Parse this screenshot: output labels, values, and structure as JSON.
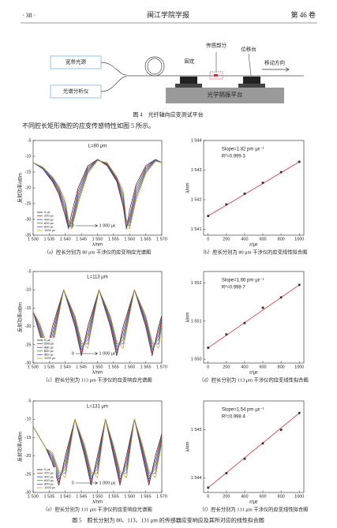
{
  "header": {
    "page": "· 38 ·",
    "journal": "闽江学院学报",
    "volume": "第 46 卷"
  },
  "figure4": {
    "source": "宽带光源",
    "analyzer": "光谱分析仪",
    "sensing": "传感部分",
    "fixed": "固定",
    "stage": "位移台",
    "direction": "移动方向",
    "platform": "光学隔振平台",
    "caption": "图 4　光纤轴向应变测试平台"
  },
  "paragraph": "不同腔长矩形微腔的应变传感特性如图 5 所示。",
  "chart_data": [
    {
      "type": "line",
      "title": "L=80 μm",
      "x_label": "λ/nm",
      "y_label": "反射功率/dBm",
      "x": [
        1530,
        1533,
        1536,
        1538,
        1540,
        1541,
        1542,
        1544,
        1547,
        1550,
        1553,
        1556,
        1558,
        1559,
        1560,
        1562,
        1565,
        1568,
        1570
      ],
      "series": [
        {
          "name": "0 με",
          "color": "#222222",
          "values": [
            -12,
            -14,
            -18,
            -22,
            -29,
            -33,
            -28,
            -20,
            -13,
            -11,
            -13,
            -18,
            -26,
            -33,
            -27,
            -19,
            -13,
            -11,
            -12
          ]
        },
        {
          "name": "200 με",
          "color": "#d62728",
          "values": [
            -12,
            -14,
            -17.7,
            -21.5,
            -28,
            -33,
            -30,
            -21,
            -13.5,
            -11,
            -12.8,
            -17.7,
            -25,
            -33,
            -29,
            -20,
            -13.5,
            -11,
            -12
          ]
        },
        {
          "name": "400 με",
          "color": "#1f4fd6",
          "values": [
            -12,
            -14,
            -17.4,
            -21,
            -27,
            -32.5,
            -31,
            -22,
            -14,
            -11,
            -12.6,
            -17.4,
            -24,
            -32.5,
            -30,
            -21,
            -14,
            -11,
            -12
          ]
        },
        {
          "name": "600 με",
          "color": "#2a8a2a",
          "values": [
            -12,
            -13.8,
            -17.1,
            -20.5,
            -26,
            -32,
            -32,
            -23,
            -14.5,
            -11,
            -12.4,
            -17.1,
            -23,
            -32,
            -31,
            -22,
            -14.5,
            -11.2,
            -12
          ]
        },
        {
          "name": "800 με",
          "color": "#8a3ab9",
          "values": [
            -12,
            -13.6,
            -16.8,
            -20,
            -25,
            -31,
            -33,
            -24,
            -15,
            -11.2,
            -12.2,
            -16.8,
            -22,
            -31,
            -32,
            -23,
            -15,
            -11.4,
            -12
          ]
        },
        {
          "name": "1000 με",
          "color": "#b5a21a",
          "values": [
            -12,
            -13.4,
            -16.5,
            -19.5,
            -24,
            -30,
            -33,
            -25,
            -15.5,
            -11.4,
            -12,
            -16.5,
            -21,
            -30,
            -33,
            -24,
            -15.5,
            -11.6,
            -12
          ]
        }
      ],
      "xlim": [
        1530,
        1570
      ],
      "xticks": [
        {
          "value": 1530,
          "label": "1 530"
        },
        {
          "value": 1535,
          "label": "1 535"
        },
        {
          "value": 1540,
          "label": "1 540"
        },
        {
          "value": 1545,
          "label": "1 545"
        },
        {
          "value": 1550,
          "label": "1 550"
        },
        {
          "value": 1555,
          "label": "1 555"
        },
        {
          "value": 1560,
          "label": "1 560"
        },
        {
          "value": 1565,
          "label": "1 565"
        },
        {
          "value": 1570,
          "label": "1 570"
        }
      ],
      "ylim": [
        -35,
        -5
      ],
      "yticks": [
        -35,
        -30,
        -25,
        -20,
        -15,
        -10,
        -5
      ],
      "annotations": [
        "0",
        "1 000 με"
      ],
      "legend": "lower left",
      "caption": "（a）腔长分别为 80 μm 干涉仪的应变响应光谱图"
    },
    {
      "type": "scatter",
      "x_label": "ε/με",
      "y_label": "λ/nm",
      "x": [
        0,
        200,
        400,
        600,
        800,
        1000
      ],
      "values": [
        1541.45,
        1541.84,
        1542.2,
        1542.57,
        1542.93,
        1543.28
      ],
      "color": "#333333",
      "fit_color": "#e03030",
      "xlim": [
        -50,
        1050
      ],
      "xticks": [
        0,
        200,
        400,
        600,
        800,
        1000
      ],
      "ylim": [
        1540.8,
        1544
      ],
      "yticks": [
        {
          "value": 1541,
          "label": "1 541"
        },
        {
          "value": 1542,
          "label": "1 542"
        },
        {
          "value": 1543,
          "label": "1 543"
        },
        {
          "value": 1544,
          "label": "1 544"
        }
      ],
      "annotations": [
        "Slope=1.82 pm·με⁻¹",
        "R²=0.999 3"
      ],
      "caption": "（b）腔长分别为 80 μm 干涉仪的应变线性拟合图"
    },
    {
      "type": "line",
      "title": "L=113 μm",
      "x_label": "λ/nm",
      "y_label": "反射功率/dBm",
      "x": [
        1530,
        1532,
        1534,
        1536,
        1539.5,
        1543,
        1545,
        1547,
        1550.5,
        1554,
        1556,
        1558,
        1561.5,
        1565,
        1567,
        1569,
        1570
      ],
      "series": [
        {
          "name": "0 με",
          "color": "#222222",
          "values": [
            -16,
            -22,
            -28,
            -20,
            -10,
            -20,
            -28,
            -20,
            -10,
            -20,
            -28,
            -20,
            -10,
            -20,
            -28,
            -20,
            -17
          ]
        },
        {
          "name": "200 με",
          "color": "#d62728",
          "values": [
            -16,
            -21.4,
            -27.2,
            -21.2,
            -10,
            -19.4,
            -27.2,
            -21.2,
            -10,
            -19.4,
            -27.2,
            -21.2,
            -10,
            -19.4,
            -27.2,
            -21.2,
            -17.5
          ]
        },
        {
          "name": "400 με",
          "color": "#1f4fd6",
          "values": [
            -16,
            -20.8,
            -26.4,
            -22.4,
            -10,
            -18.8,
            -26.4,
            -22.4,
            -10,
            -18.8,
            -26.4,
            -22.4,
            -10,
            -18.8,
            -26.4,
            -22.4,
            -18
          ]
        },
        {
          "name": "600 με",
          "color": "#2a8a2a",
          "values": [
            -16,
            -20.2,
            -25.6,
            -23.6,
            -10,
            -18.2,
            -25.6,
            -23.6,
            -10,
            -18.2,
            -25.6,
            -23.6,
            -10,
            -18.2,
            -25.6,
            -23.6,
            -18.5
          ]
        },
        {
          "name": "800 με",
          "color": "#8a3ab9",
          "values": [
            -16,
            -19.6,
            -24.8,
            -24.8,
            -10,
            -17.6,
            -24.8,
            -24.8,
            -10,
            -17.6,
            -24.8,
            -24.8,
            -10,
            -17.6,
            -24.8,
            -24.8,
            -19
          ]
        },
        {
          "name": "1000 με",
          "color": "#b5a21a",
          "values": [
            -16,
            -19,
            -24,
            -26,
            -10,
            -17,
            -24,
            -26,
            -10,
            -17,
            -24,
            -26,
            -10,
            -17,
            -24,
            -26,
            -19.5
          ]
        }
      ],
      "xlim": [
        1530,
        1570
      ],
      "xticks": [
        {
          "value": 1530,
          "label": "1 530"
        },
        {
          "value": 1535,
          "label": "1 535"
        },
        {
          "value": 1540,
          "label": "1 540"
        },
        {
          "value": 1545,
          "label": "1 545"
        },
        {
          "value": 1550,
          "label": "1 550"
        },
        {
          "value": 1555,
          "label": "1 555"
        },
        {
          "value": 1560,
          "label": "1 560"
        },
        {
          "value": 1565,
          "label": "1 565"
        },
        {
          "value": 1570,
          "label": "1 570"
        }
      ],
      "ylim": [
        -30,
        -5
      ],
      "yticks": [
        -30,
        -25,
        -20,
        -15,
        -10,
        -5
      ],
      "annotations": [
        "0",
        "1 000 με"
      ],
      "legend": "lower left",
      "caption": "（c）腔长分别为 113 μm 干涉仪的应变响应光谱图"
    },
    {
      "type": "scatter",
      "x_label": "ε/με",
      "y_label": "λ/nm",
      "x": [
        0,
        200,
        400,
        600,
        800,
        1000
      ],
      "values": [
        1550.3,
        1550.65,
        1550.95,
        1551.35,
        1551.62,
        1551.95
      ],
      "color": "#333333",
      "fit_color": "#e03030",
      "xlim": [
        -50,
        1050
      ],
      "xticks": [
        0,
        200,
        400,
        600,
        800,
        1000
      ],
      "ylim": [
        1549.9,
        1552.3
      ],
      "yticks": [
        {
          "value": 1550,
          "label": "1 550"
        },
        {
          "value": 1551,
          "label": "1 551"
        },
        {
          "value": 1552,
          "label": "1 552"
        }
      ],
      "annotations": [
        "Slope=1.66 pm·με⁻¹",
        "R²=0.998 7"
      ],
      "caption": "（d）腔长分别为 113 μm 干涉仪的应变线性拟合图"
    },
    {
      "type": "line",
      "title": "L=131 μm",
      "x_label": "λ/nm",
      "y_label": "反射功率/dBm",
      "x": [
        1530,
        1534,
        1536,
        1538,
        1540,
        1543,
        1546,
        1548,
        1550,
        1552.5,
        1555,
        1557,
        1559,
        1561.5,
        1564,
        1566,
        1568,
        1570
      ],
      "series": [
        {
          "name": "0 με",
          "color": "#222222",
          "values": [
            -12,
            -18,
            -22,
            -28,
            -20,
            -10,
            -20,
            -28,
            -20,
            -10,
            -20,
            -28,
            -20,
            -10,
            -20,
            -28,
            -20,
            -14
          ]
        },
        {
          "name": "200 με",
          "color": "#d62728",
          "values": [
            -12,
            -18,
            -21.4,
            -27.2,
            -21.2,
            -10,
            -19.4,
            -27.2,
            -21.2,
            -10,
            -19.4,
            -27.2,
            -21.2,
            -10,
            -19.4,
            -27.2,
            -21.2,
            -14.5
          ]
        },
        {
          "name": "400 με",
          "color": "#1f4fd6",
          "values": [
            -12,
            -18,
            -20.8,
            -26.4,
            -22.4,
            -10,
            -18.8,
            -26.4,
            -22.4,
            -10,
            -18.8,
            -26.4,
            -22.4,
            -10,
            -18.8,
            -26.4,
            -22.4,
            -15
          ]
        },
        {
          "name": "600 με",
          "color": "#2a8a2a",
          "values": [
            -12,
            -18,
            -20.2,
            -25.6,
            -23.6,
            -10,
            -18.2,
            -25.6,
            -23.6,
            -10,
            -18.2,
            -25.6,
            -23.6,
            -10,
            -18.2,
            -25.6,
            -23.6,
            -15.5
          ]
        },
        {
          "name": "800 με",
          "color": "#8a3ab9",
          "values": [
            -12,
            -18,
            -19.6,
            -24.8,
            -24.8,
            -10,
            -17.6,
            -24.8,
            -24.8,
            -10,
            -17.6,
            -24.8,
            -24.8,
            -10,
            -17.6,
            -24.8,
            -24.8,
            -16
          ]
        },
        {
          "name": "1000 με",
          "color": "#b5a21a",
          "values": [
            -12,
            -18,
            -19,
            -24,
            -26,
            -10,
            -17,
            -24,
            -26,
            -10,
            -17,
            -24,
            -26,
            -10,
            -17,
            -24,
            -26,
            -16.5
          ]
        }
      ],
      "xlim": [
        1530,
        1570
      ],
      "xticks": [
        {
          "value": 1530,
          "label": "1 530"
        },
        {
          "value": 1535,
          "label": "1 535"
        },
        {
          "value": 1540,
          "label": "1 540"
        },
        {
          "value": 1545,
          "label": "1 545"
        },
        {
          "value": 1550,
          "label": "1 550"
        },
        {
          "value": 1555,
          "label": "1 555"
        },
        {
          "value": 1560,
          "label": "1 560"
        },
        {
          "value": 1565,
          "label": "1 565"
        },
        {
          "value": 1570,
          "label": "1 570"
        }
      ],
      "ylim": [
        -30,
        -5
      ],
      "yticks": [
        -30,
        -25,
        -20,
        -15,
        -10,
        -5
      ],
      "annotations": [
        "0",
        "1 000 με"
      ],
      "legend": "lower left",
      "caption": "（e）腔长分别为 131 μm 干涉仪的应变响应光谱图"
    },
    {
      "type": "scatter",
      "x_label": "ε/με",
      "y_label": "λ/nm",
      "x": [
        0,
        200,
        400,
        600,
        800,
        1000
      ],
      "values": [
        1543.8,
        1544.1,
        1544.4,
        1544.72,
        1545.0,
        1545.35
      ],
      "color": "#333333",
      "fit_color": "#e03030",
      "xlim": [
        -50,
        1050
      ],
      "xticks": [
        0,
        200,
        400,
        600,
        800,
        1000
      ],
      "ylim": [
        1543.7,
        1545.6
      ],
      "yticks": [
        {
          "value": 1544,
          "label": "1 544"
        },
        {
          "value": 1545,
          "label": "1 545"
        }
      ],
      "annotations": [
        "Slope=1.54 pm·με⁻¹",
        "R²=0.998 4"
      ],
      "caption": "（f）腔长分别为 131 μm 干涉仪的应变线性拟合图"
    }
  ],
  "figure5_caption": "图 5　腔长分别为 80、113、131 μm 的传感器应变响应及其所对应的线性拟合图"
}
